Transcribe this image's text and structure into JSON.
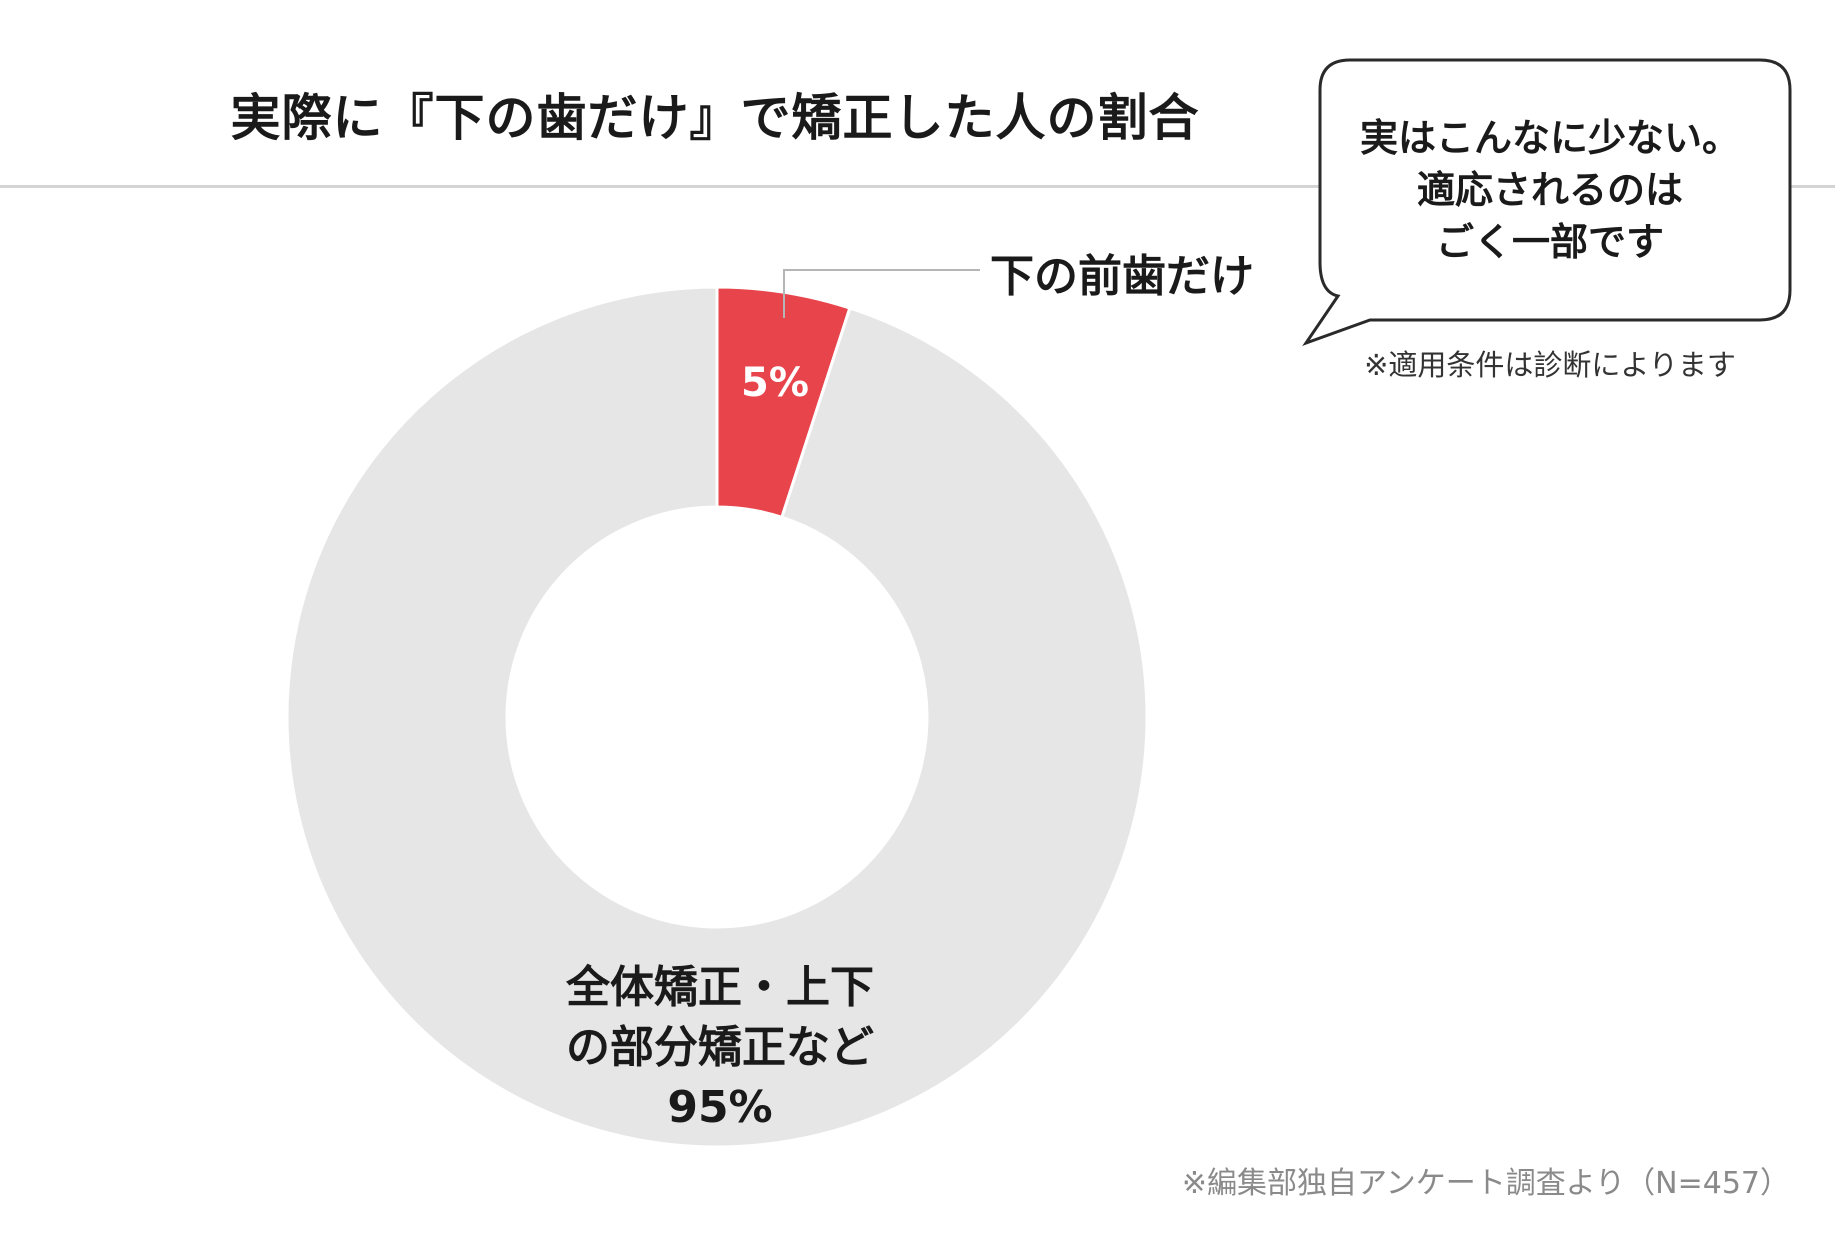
{
  "chart_data": {
    "type": "pie",
    "title": "実際に『下の歯だけ』で矯正した人の割合",
    "slices": [
      {
        "label": "下の前歯だけ",
        "value": 5,
        "value_label": "5%",
        "color": "#e8444c"
      },
      {
        "label_lines": [
          "全体矯正・上下",
          "の部分矯正など"
        ],
        "value": 95,
        "value_label": "95%",
        "color": "#e6e6e6"
      }
    ],
    "callout": {
      "lines": [
        "実はこんなに少ない。",
        "適応されるのは",
        "ごく一部です"
      ],
      "note": "※適用条件は診断によります"
    },
    "source": "※編集部独自アンケート調査より（N=457）"
  }
}
